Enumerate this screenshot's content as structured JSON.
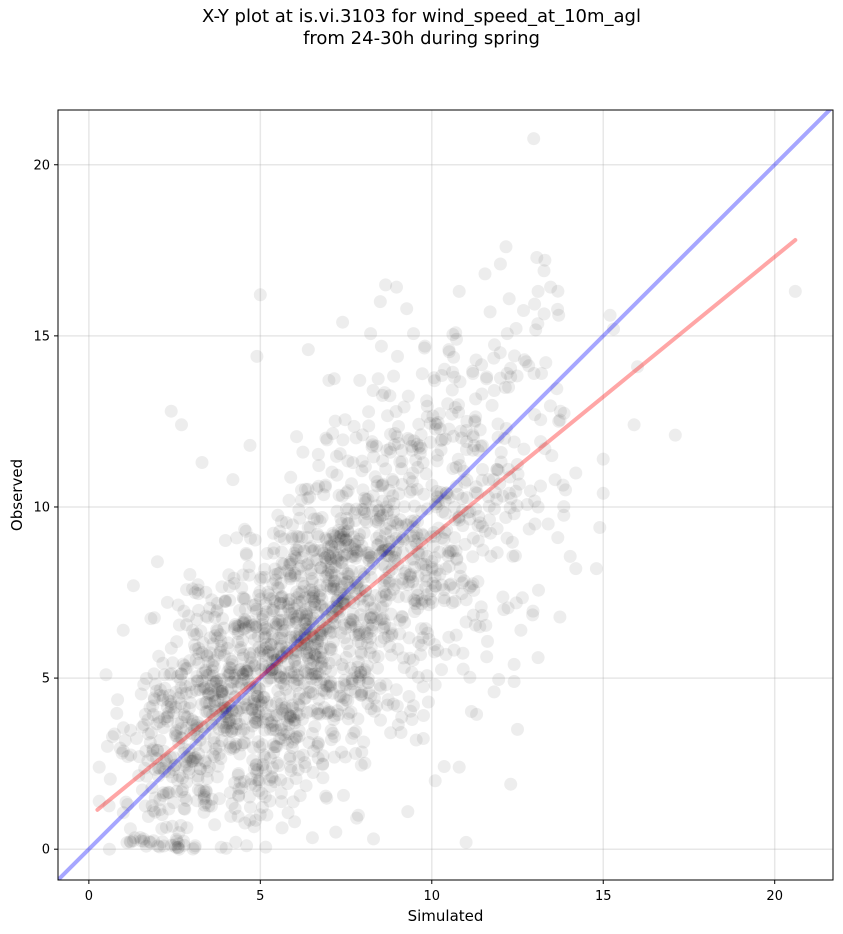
{
  "chart_data": {
    "type": "scatter",
    "title_line1": "X-Y plot at is.vi.3103 for wind_speed_at_10m_agl",
    "title_line2": "from 24-30h during spring",
    "xlabel": "Simulated",
    "ylabel": "Observed",
    "xlim": [
      -0.9,
      21.7
    ],
    "ylim": [
      -0.9,
      21.6
    ],
    "xticks": [
      0,
      5,
      10,
      15,
      20
    ],
    "yticks": [
      0,
      5,
      10,
      15,
      20
    ],
    "grid": true,
    "point_color": "#000000",
    "point_alpha": 0.07,
    "reference_line": {
      "slope": 1,
      "intercept": 0,
      "color": "#0000ff",
      "alpha": 0.35
    },
    "regression_line": {
      "x": [
        0.25,
        20.6
      ],
      "y": [
        1.15,
        17.8
      ],
      "color": "#ff0000",
      "alpha": 0.35
    },
    "point_count": 2000,
    "points_sample": [
      [
        13.1,
        16.3
      ],
      [
        11.7,
        15.7
      ],
      [
        10.8,
        16.3
      ],
      [
        12.0,
        17.1
      ],
      [
        8.5,
        16.0
      ],
      [
        5.0,
        16.2
      ],
      [
        7.4,
        15.4
      ],
      [
        15.2,
        15.6
      ],
      [
        13.7,
        15.6
      ],
      [
        15.3,
        15.2
      ],
      [
        20.6,
        16.3
      ],
      [
        17.1,
        12.1
      ],
      [
        15.9,
        12.4
      ],
      [
        16.0,
        14.1
      ],
      [
        15.0,
        11.4
      ],
      [
        14.8,
        8.2
      ],
      [
        14.2,
        8.2
      ],
      [
        15.0,
        10.4
      ],
      [
        14.9,
        9.4
      ],
      [
        12.5,
        3.5
      ],
      [
        12.3,
        1.9
      ],
      [
        11.0,
        0.2
      ],
      [
        10.8,
        2.4
      ],
      [
        9.3,
        1.1
      ],
      [
        10.1,
        2.0
      ],
      [
        8.3,
        0.3
      ],
      [
        7.2,
        0.5
      ],
      [
        2.4,
        12.8
      ],
      [
        2.7,
        12.4
      ],
      [
        4.9,
        14.4
      ],
      [
        6.4,
        14.6
      ],
      [
        7.0,
        13.7
      ],
      [
        7.9,
        13.7
      ],
      [
        9.0,
        14.4
      ],
      [
        9.8,
        14.7
      ],
      [
        10.5,
        14.6
      ],
      [
        11.2,
        13.9
      ],
      [
        11.6,
        13.8
      ],
      [
        12.3,
        13.8
      ],
      [
        12.7,
        14.3
      ],
      [
        13.2,
        13.9
      ],
      [
        13.0,
        12.7
      ],
      [
        13.5,
        11.5
      ],
      [
        13.9,
        10.5
      ],
      [
        13.1,
        10.0
      ],
      [
        12.4,
        9.8
      ],
      [
        11.8,
        10.8
      ],
      [
        12.6,
        6.4
      ],
      [
        12.1,
        7.0
      ],
      [
        11.4,
        6.5
      ],
      [
        10.6,
        7.2
      ],
      [
        10.1,
        4.8
      ],
      [
        9.9,
        4.3
      ],
      [
        8.8,
        3.4
      ],
      [
        8.5,
        4.7
      ],
      [
        12.4,
        4.9
      ],
      [
        12.4,
        5.4
      ],
      [
        13.1,
        5.6
      ],
      [
        3.3,
        11.3
      ],
      [
        4.2,
        10.8
      ],
      [
        4.7,
        11.8
      ],
      [
        1.3,
        7.7
      ],
      [
        2.0,
        8.4
      ],
      [
        1.0,
        6.4
      ],
      [
        0.5,
        5.1
      ],
      [
        0.3,
        2.4
      ],
      [
        0.3,
        1.4
      ],
      [
        0.6,
        0.0
      ],
      [
        1.8,
        0.2
      ],
      [
        3.1,
        0.1
      ],
      [
        4.6,
        0.1
      ],
      [
        6.0,
        0.8
      ]
    ]
  }
}
